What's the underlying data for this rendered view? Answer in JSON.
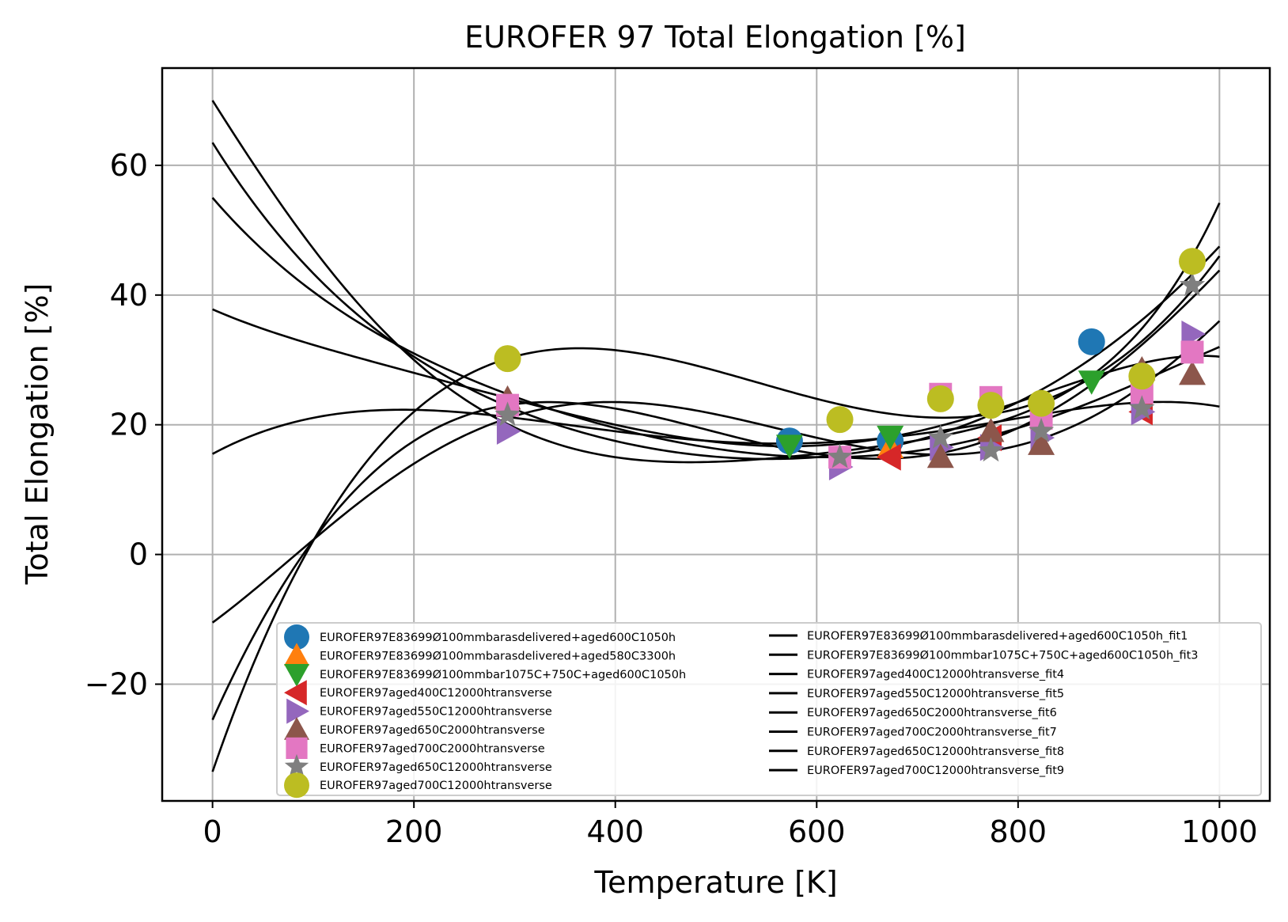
{
  "chart_data": {
    "type": "scatter",
    "title": "EUROFER 97 Total Elongation [%]",
    "xlabel": "Temperature [K]",
    "ylabel": "Total Elongation [%]",
    "xlim": [
      -50,
      1050
    ],
    "ylim": [
      -38,
      75
    ],
    "xticks": [
      0,
      200,
      400,
      600,
      800,
      1000
    ],
    "yticks": [
      -20,
      0,
      20,
      40,
      60
    ],
    "xtick_labels": [
      "0",
      "200",
      "400",
      "600",
      "800",
      "1000"
    ],
    "ytick_labels": [
      "−20",
      "0",
      "20",
      "40",
      "60"
    ],
    "grid": true,
    "legend_position": "lower-center",
    "series": [
      {
        "name": "EUROFER97E83699Ø100mmbarasdelivered+aged600C1050h",
        "marker": "circle",
        "color": "#1f77b4",
        "points": [
          [
            573,
            17.5
          ],
          [
            673,
            17.5
          ],
          [
            873,
            32.8
          ]
        ]
      },
      {
        "name": "EUROFER97E83699Ø100mmbarasdelivered+aged580C3300h",
        "marker": "triangle-up",
        "color": "#ff7f0e",
        "points": [
          [
            673,
            16.5
          ]
        ]
      },
      {
        "name": "EUROFER97E83699Ø100mmbar1075C+750C+aged600C1050h",
        "marker": "triangle-down",
        "color": "#2ca02c",
        "points": [
          [
            573,
            16.8
          ],
          [
            673,
            18.2
          ],
          [
            873,
            26.7
          ]
        ]
      },
      {
        "name": "EUROFER97aged400C12000htransverse",
        "marker": "triangle-left",
        "color": "#d62728",
        "points": [
          [
            673,
            15.0
          ],
          [
            773,
            18.0
          ],
          [
            923,
            22.0
          ]
        ]
      },
      {
        "name": "EUROFER97aged550C12000htransverse",
        "marker": "triangle-right",
        "color": "#9467bd",
        "points": [
          [
            293,
            19.0
          ],
          [
            623,
            13.5
          ],
          [
            723,
            16.5
          ],
          [
            773,
            16.5
          ],
          [
            823,
            18.0
          ],
          [
            923,
            22.0
          ],
          [
            973,
            34.0
          ]
        ]
      },
      {
        "name": "EUROFER97aged650C2000htransverse",
        "marker": "triangle-up",
        "color": "#8c564b",
        "points": [
          [
            293,
            24.0
          ],
          [
            723,
            15.0
          ],
          [
            773,
            19.0
          ],
          [
            823,
            17.0
          ],
          [
            923,
            28.5
          ],
          [
            973,
            27.8
          ]
        ]
      },
      {
        "name": "EUROFER97aged700C2000htransverse",
        "marker": "square",
        "color": "#e377c2",
        "points": [
          [
            293,
            23.0
          ],
          [
            623,
            15.0
          ],
          [
            723,
            24.7
          ],
          [
            773,
            24.2
          ],
          [
            823,
            21.0
          ],
          [
            923,
            25.0
          ],
          [
            973,
            31.2
          ]
        ]
      },
      {
        "name": "EUROFER97aged650C12000htransverse",
        "marker": "star",
        "color": "#7f7f7f",
        "points": [
          [
            293,
            21.5
          ],
          [
            623,
            15.0
          ],
          [
            723,
            18.0
          ],
          [
            773,
            16.0
          ],
          [
            823,
            19.0
          ],
          [
            923,
            22.5
          ],
          [
            973,
            41.5
          ]
        ]
      },
      {
        "name": "EUROFER97aged700C12000htransverse",
        "marker": "circle",
        "color": "#bcbd22",
        "points": [
          [
            293,
            30.2
          ],
          [
            623,
            20.8
          ],
          [
            723,
            24.0
          ],
          [
            773,
            23.0
          ],
          [
            823,
            23.3
          ],
          [
            923,
            27.5
          ],
          [
            973,
            45.2
          ]
        ]
      }
    ],
    "fits": [
      {
        "name": "EUROFER97E83699Ø100mmbarasdelivered+aged600C1050h_fit1",
        "points": [
          [
            0,
            15.5
          ],
          [
            200,
            22.3
          ],
          [
            400,
            19.0
          ],
          [
            600,
            17.2
          ],
          [
            800,
            21.0
          ],
          [
            1000,
            22.8
          ]
        ]
      },
      {
        "name": "EUROFER97E83699Ø100mmbar1075C+750C+aged600C1050h_fit3",
        "points": [
          [
            0,
            37.8
          ],
          [
            200,
            28.0
          ],
          [
            400,
            20.0
          ],
          [
            600,
            16.8
          ],
          [
            800,
            23.5
          ],
          [
            1000,
            30.5
          ]
        ]
      },
      {
        "name": "EUROFER97aged400C12000htransverse_fit4",
        "points": [
          [
            0,
            -10.5
          ],
          [
            200,
            14.0
          ],
          [
            400,
            23.5
          ],
          [
            600,
            18.0
          ],
          [
            800,
            16.8
          ],
          [
            1000,
            36.0
          ]
        ]
      },
      {
        "name": "EUROFER97aged550C12000htransverse_fit5",
        "points": [
          [
            0,
            55.0
          ],
          [
            200,
            31.0
          ],
          [
            400,
            19.5
          ],
          [
            600,
            15.0
          ],
          [
            800,
            19.5
          ],
          [
            1000,
            32.0
          ]
        ]
      },
      {
        "name": "EUROFER97aged650C2000htransverse_fit6",
        "points": [
          [
            0,
            63.5
          ],
          [
            200,
            30.5
          ],
          [
            400,
            17.5
          ],
          [
            600,
            15.0
          ],
          [
            800,
            23.5
          ],
          [
            1000,
            47.5
          ]
        ]
      },
      {
        "name": "EUROFER97aged700C2000htransverse_fit7",
        "points": [
          [
            0,
            -25.5
          ],
          [
            200,
            17.5
          ],
          [
            400,
            22.5
          ],
          [
            600,
            15.5
          ],
          [
            800,
            19.5
          ],
          [
            1000,
            43.8
          ]
        ]
      },
      {
        "name": "EUROFER97aged650C12000htransverse_fit8",
        "points": [
          [
            0,
            70.0
          ],
          [
            200,
            30.0
          ],
          [
            400,
            15.0
          ],
          [
            600,
            15.5
          ],
          [
            800,
            21.5
          ],
          [
            1000,
            54.2
          ]
        ]
      },
      {
        "name": "EUROFER97aged700C12000htransverse_fit9",
        "points": [
          [
            0,
            -33.5
          ],
          [
            200,
            22.0
          ],
          [
            400,
            31.5
          ],
          [
            600,
            24.0
          ],
          [
            800,
            22.5
          ],
          [
            1000,
            46.0
          ]
        ]
      }
    ]
  }
}
